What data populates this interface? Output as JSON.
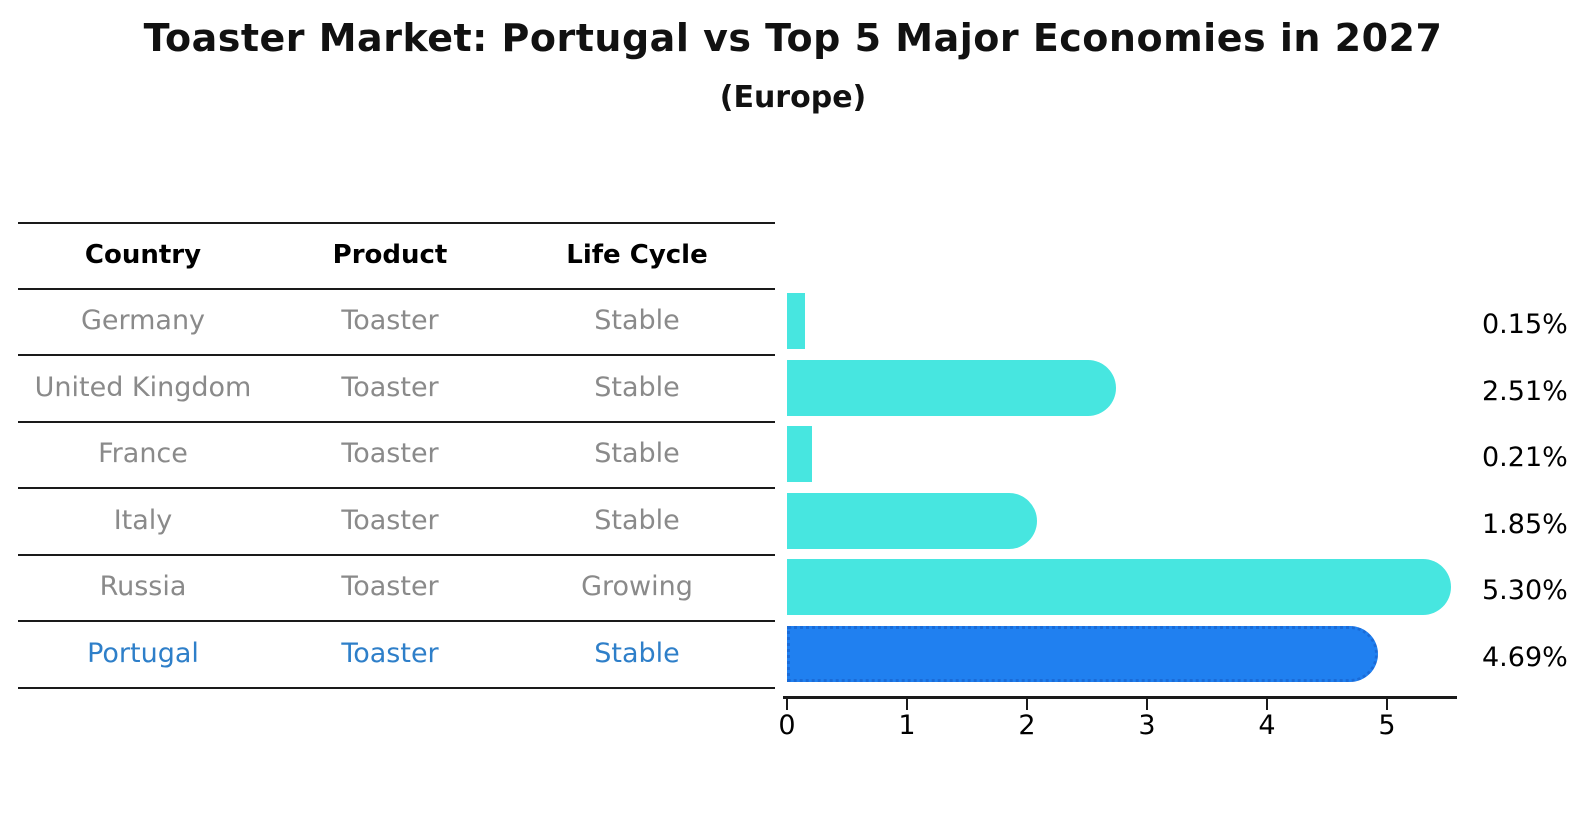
{
  "header": {
    "title": "Toaster Market: Portugal vs Top 5 Major Economies in 2027",
    "subtitle": "(Europe)"
  },
  "table": {
    "columns": [
      "Country",
      "Product",
      "Life Cycle"
    ],
    "rows": [
      {
        "country": "Germany",
        "product": "Toaster",
        "life_cycle": "Stable",
        "value": 0.15,
        "value_label": "0.15%",
        "highlight": false
      },
      {
        "country": "United Kingdom",
        "product": "Toaster",
        "life_cycle": "Stable",
        "value": 2.51,
        "value_label": "2.51%",
        "highlight": false
      },
      {
        "country": "France",
        "product": "Toaster",
        "life_cycle": "Stable",
        "value": 0.21,
        "value_label": "0.21%",
        "highlight": false
      },
      {
        "country": "Italy",
        "product": "Toaster",
        "life_cycle": "Stable",
        "value": 1.85,
        "value_label": "1.85%",
        "highlight": false
      },
      {
        "country": "Russia",
        "product": "Toaster",
        "life_cycle": "Growing",
        "value": 5.3,
        "value_label": "5.30%",
        "highlight": false
      },
      {
        "country": "Portugal",
        "product": "Toaster",
        "life_cycle": "Stable",
        "value": 4.69,
        "value_label": "4.69%",
        "highlight": true
      }
    ]
  },
  "chart_data": {
    "type": "bar",
    "orientation": "horizontal",
    "title": "Toaster Market: Portugal vs Top 5 Major Economies in 2027",
    "subtitle": "(Europe)",
    "categories": [
      "Germany",
      "United Kingdom",
      "France",
      "Italy",
      "Russia",
      "Portugal"
    ],
    "values": [
      0.15,
      2.51,
      0.21,
      1.85,
      5.3,
      4.69
    ],
    "value_labels": [
      "0.15%",
      "2.51%",
      "0.21%",
      "1.85%",
      "5.30%",
      "4.69%"
    ],
    "units": "percent",
    "xlabel": "",
    "ylabel": "",
    "xticks": [
      0,
      1,
      2,
      3,
      4,
      5
    ],
    "xlim": [
      0,
      5.6
    ],
    "grid": false,
    "legend": false,
    "highlight_index": 5,
    "bar_color": "#47e6e0",
    "highlight_bar_color": "#2080f0",
    "highlight_border_color": "#1a6bd8",
    "highlight_text_color": "#2e7fc9",
    "table_text_color": "#8a8a8a",
    "axis_color": "#1a1a1a"
  }
}
